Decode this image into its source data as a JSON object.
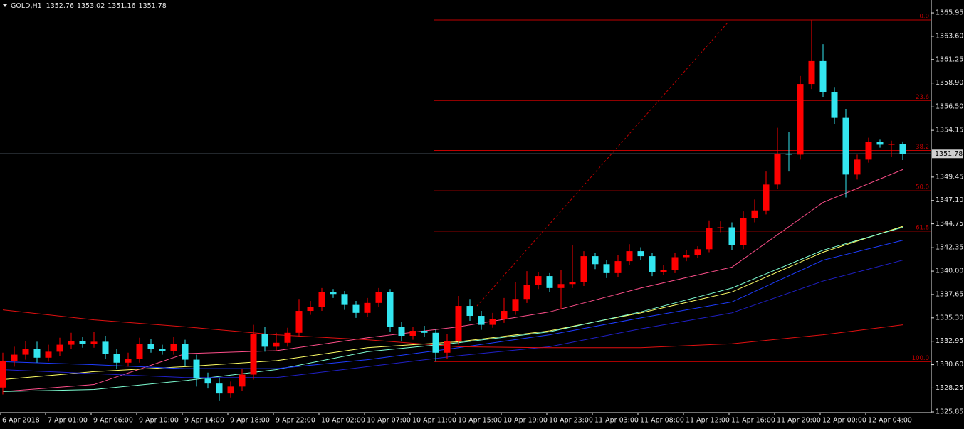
{
  "chart_data": {
    "type": "candlestick",
    "title": "GOLD,H1",
    "header_values": [
      1352.76,
      1353.02,
      1351.16,
      1351.78
    ],
    "categories": [
      "6 Apr 2018",
      null,
      null,
      null,
      "7 Apr 01:00",
      null,
      null,
      null,
      "9 Apr 06:00",
      null,
      null,
      null,
      "9 Apr 10:00",
      null,
      null,
      null,
      "9 Apr 14:00",
      null,
      null,
      null,
      "9 Apr 18:00",
      null,
      null,
      null,
      "9 Apr 22:00",
      null,
      null,
      null,
      "10 Apr 02:00",
      null,
      null,
      null,
      "10 Apr 07:00",
      null,
      null,
      null,
      "10 Apr 11:00",
      null,
      null,
      null,
      "10 Apr 15:00",
      null,
      null,
      null,
      "10 Apr 19:00",
      null,
      null,
      null,
      "10 Apr 23:00",
      null,
      null,
      null,
      "11 Apr 03:00",
      null,
      null,
      null,
      "11 Apr 08:00",
      null,
      null,
      null,
      "11 Apr 12:00",
      null,
      null,
      null,
      "11 Apr 16:00",
      null,
      null,
      null,
      "11 Apr 20:00",
      null,
      null,
      null,
      "12 Apr 00:00",
      null,
      null,
      null,
      "12 Apr 04:00",
      null,
      null,
      null
    ],
    "open": [
      1328.3,
      1331.0,
      1331.6,
      1332.2,
      1331.3,
      1331.9,
      1332.6,
      1333.0,
      1332.7,
      1332.9,
      1331.7,
      1330.8,
      1331.2,
      1332.7,
      1332.2,
      1332.0,
      1332.7,
      1331.1,
      1329.2,
      1328.7,
      1327.7,
      1328.4,
      1329.6,
      1333.7,
      1332.4,
      1332.8,
      1333.8,
      1336.0,
      1336.4,
      1337.9,
      1337.7,
      1336.6,
      1335.8,
      1336.8,
      1337.9,
      1334.4,
      1333.5,
      1334.0,
      1333.8,
      1331.8,
      1333.0,
      1336.5,
      1335.5,
      1334.6,
      1335.2,
      1336.0,
      1337.2,
      1338.6,
      1339.5,
      1338.3,
      1338.7,
      1338.9,
      1341.5,
      1340.7,
      1339.8,
      1341.0,
      1342.0,
      1341.5,
      1339.9,
      1340.1,
      1341.4,
      1341.6,
      1342.2,
      1344.3,
      1344.4,
      1342.6,
      1345.3,
      1346.1,
      1348.7,
      1351.8,
      1351.7,
      1358.8,
      1361.1,
      1358.0,
      1355.4,
      1349.7,
      1351.2,
      1353.0,
      1352.7,
      1352.76
    ],
    "high": [
      1331.8,
      1332.4,
      1333.0,
      1332.9,
      1332.6,
      1333.3,
      1333.8,
      1333.4,
      1333.9,
      1333.5,
      1332.2,
      1331.8,
      1333.3,
      1333.2,
      1332.6,
      1333.4,
      1333.1,
      1331.6,
      1329.8,
      1329.3,
      1328.9,
      1330.2,
      1334.6,
      1334.4,
      1333.8,
      1334.3,
      1337.2,
      1337.0,
      1338.3,
      1338.2,
      1338.0,
      1337.0,
      1337.3,
      1338.3,
      1338.2,
      1334.9,
      1334.4,
      1334.5,
      1334.2,
      1333.7,
      1337.5,
      1337.2,
      1336.0,
      1335.8,
      1337.3,
      1338.9,
      1340.0,
      1339.9,
      1339.8,
      1340.1,
      1342.6,
      1342.0,
      1341.8,
      1341.1,
      1341.6,
      1342.7,
      1342.4,
      1341.8,
      1340.6,
      1341.8,
      1342.1,
      1342.5,
      1345.1,
      1345.0,
      1344.9,
      1346.0,
      1347.2,
      1350.0,
      1354.4,
      1354.0,
      1359.6,
      1365.2,
      1362.8,
      1358.5,
      1356.3,
      1351.7,
      1353.4,
      1353.2,
      1353.1,
      1353.02
    ],
    "low": [
      1327.6,
      1330.4,
      1331.1,
      1330.8,
      1330.9,
      1331.5,
      1332.2,
      1332.3,
      1332.3,
      1331.2,
      1330.2,
      1330.4,
      1330.8,
      1331.8,
      1331.6,
      1331.6,
      1330.5,
      1328.4,
      1328.2,
      1327.0,
      1327.3,
      1328.0,
      1329.1,
      1331.9,
      1332.0,
      1332.4,
      1333.4,
      1335.6,
      1336.0,
      1337.3,
      1336.1,
      1335.3,
      1335.4,
      1336.4,
      1333.9,
      1333.0,
      1333.1,
      1333.4,
      1330.9,
      1331.2,
      1332.6,
      1335.0,
      1334.1,
      1334.3,
      1334.8,
      1335.6,
      1336.8,
      1338.2,
      1337.9,
      1336.2,
      1338.3,
      1338.5,
      1340.2,
      1339.3,
      1339.4,
      1340.6,
      1341.1,
      1339.5,
      1339.6,
      1339.8,
      1341.0,
      1341.3,
      1341.9,
      1343.9,
      1342.1,
      1342.2,
      1344.9,
      1345.7,
      1348.3,
      1350.0,
      1351.2,
      1358.3,
      1357.5,
      1354.8,
      1347.4,
      1349.2,
      1350.9,
      1352.4,
      1351.5,
      1351.16
    ],
    "close": [
      1331.0,
      1331.6,
      1332.2,
      1331.3,
      1331.9,
      1332.6,
      1333.0,
      1332.7,
      1332.9,
      1331.7,
      1330.8,
      1331.2,
      1332.7,
      1332.2,
      1332.0,
      1332.7,
      1331.1,
      1329.2,
      1328.7,
      1327.7,
      1328.4,
      1329.6,
      1333.7,
      1332.4,
      1332.8,
      1333.8,
      1336.0,
      1336.4,
      1337.9,
      1337.7,
      1336.6,
      1335.8,
      1336.8,
      1337.9,
      1334.4,
      1333.5,
      1334.0,
      1333.8,
      1331.8,
      1333.0,
      1336.5,
      1335.5,
      1334.6,
      1335.2,
      1336.0,
      1337.2,
      1338.6,
      1339.5,
      1338.3,
      1338.7,
      1338.9,
      1341.5,
      1340.7,
      1339.8,
      1341.0,
      1342.0,
      1341.5,
      1339.9,
      1340.1,
      1341.4,
      1341.6,
      1342.2,
      1344.3,
      1344.4,
      1342.6,
      1345.3,
      1346.1,
      1348.7,
      1351.8,
      1351.7,
      1358.8,
      1361.1,
      1358.0,
      1355.4,
      1349.7,
      1351.2,
      1353.0,
      1352.7,
      1352.76,
      1351.78
    ],
    "up_color": "#ff0000",
    "down_color": "#33e6f0",
    "ylim": [
      1325.78,
      1367.24
    ],
    "yticks": [
      1365.95,
      {
        "value": 1363.6,
        "label": "1363.60"
      },
      1361.25,
      {
        "value": 1358.9,
        "label": "1358.90"
      },
      {
        "value": 1356.5,
        "label": "1356.50"
      },
      1354.15,
      1349.45,
      {
        "value": 1347.1,
        "label": "1347.10"
      },
      1344.75,
      1342.35,
      {
        "value": 1340,
        "label": "1340.00"
      },
      1337.65,
      {
        "value": 1335.3,
        "label": "1335.30"
      },
      1332.95,
      {
        "value": 1330.6,
        "label": "1330.60"
      },
      1328.25,
      1325.85
    ],
    "last_price": 1351.78,
    "indicator_x": [
      0,
      8,
      16,
      24,
      32,
      40,
      48,
      56,
      64,
      72,
      79
    ],
    "indicators": [
      {
        "color": "#ff4f8b",
        "values": [
          1327.9,
          1328.6,
          1331.7,
          1332.0,
          1333.3,
          1334.4,
          1335.9,
          1338.3,
          1340.4,
          1346.9,
          1350.2
        ]
      },
      {
        "color": "#ffff66",
        "values": [
          1329.1,
          1329.9,
          1330.4,
          1331.0,
          1332.3,
          1332.9,
          1334.0,
          1335.8,
          1337.9,
          1341.9,
          1344.5
        ]
      },
      {
        "color": "#7fffd4",
        "values": [
          1327.9,
          1328.1,
          1329.0,
          1330.1,
          1331.9,
          1332.8,
          1333.9,
          1335.9,
          1338.3,
          1342.1,
          1344.4
        ]
      },
      {
        "color": "#1e3cff",
        "values": [
          1330.9,
          1330.6,
          1330.2,
          1330.2,
          1331.1,
          1332.3,
          1333.6,
          1335.3,
          1336.9,
          1341.1,
          1343.1
        ]
      },
      {
        "color": "#2020c8",
        "values": [
          1330.1,
          1329.7,
          1329.3,
          1329.3,
          1330.4,
          1331.5,
          1332.4,
          1334.2,
          1335.8,
          1339.0,
          1341.1
        ]
      },
      {
        "color": "#e01010",
        "values": [
          1336.1,
          1335.1,
          1334.4,
          1333.6,
          1333.1,
          1332.4,
          1332.3,
          1332.3,
          1332.7,
          1333.6,
          1334.6
        ]
      }
    ],
    "fib_color": "#c00000",
    "fib_start": 38,
    "fibonacci": [
      {
        "value": 1365.24,
        "label": "0.0"
      },
      {
        "value": 1357.14,
        "label": "23.6"
      },
      {
        "value": 1352.12,
        "label": "38.2"
      },
      {
        "value": 1348.07,
        "label": "50.0"
      },
      {
        "value": 1344.02,
        "label": "61.8"
      },
      {
        "value": 1330.9,
        "label": "100.0"
      }
    ]
  }
}
